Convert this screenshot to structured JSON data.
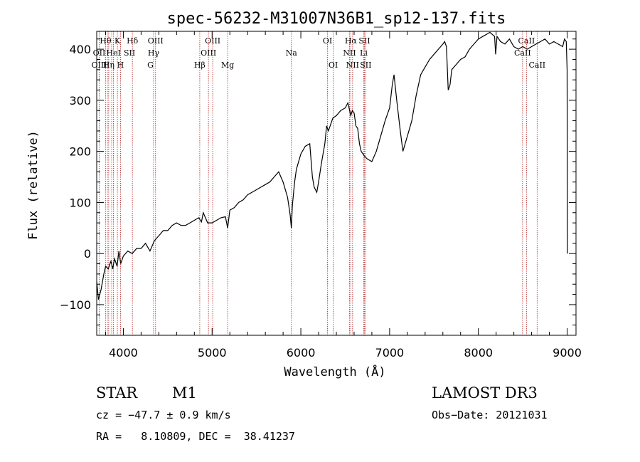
{
  "chart_data": {
    "type": "line",
    "title": "spec-56232-M31007N36B1_sp12-137.fits",
    "xlabel": "Wavelength (Å)",
    "ylabel": "Flux (relative)",
    "xlim": [
      3700,
      9100
    ],
    "ylim": [
      -160,
      435
    ],
    "xticks": [
      4000,
      5000,
      6000,
      7000,
      8000,
      9000
    ],
    "yticks": [
      -100,
      0,
      100,
      200,
      300,
      400
    ],
    "series": [
      {
        "name": "flux",
        "x": [
          3700,
          3720,
          3750,
          3780,
          3800,
          3830,
          3860,
          3880,
          3900,
          3930,
          3950,
          3970,
          4000,
          4050,
          4100,
          4150,
          4200,
          4250,
          4300,
          4350,
          4400,
          4450,
          4500,
          4550,
          4600,
          4650,
          4700,
          4750,
          4800,
          4850,
          4880,
          4900,
          4950,
          5000,
          5050,
          5100,
          5150,
          5175,
          5200,
          5250,
          5300,
          5350,
          5400,
          5450,
          5500,
          5550,
          5600,
          5650,
          5700,
          5750,
          5800,
          5850,
          5880,
          5893,
          5905,
          5930,
          5950,
          6000,
          6050,
          6100,
          6130,
          6150,
          6180,
          6200,
          6230,
          6250,
          6270,
          6290,
          6310,
          6330,
          6360,
          6400,
          6450,
          6500,
          6530,
          6550,
          6563,
          6580,
          6600,
          6620,
          6640,
          6660,
          6680,
          6700,
          6720,
          6750,
          6800,
          6850,
          6900,
          6950,
          7000,
          7030,
          7050,
          7080,
          7100,
          7120,
          7150,
          7200,
          7250,
          7300,
          7350,
          7400,
          7450,
          7500,
          7550,
          7600,
          7620,
          7640,
          7660,
          7680,
          7700,
          7750,
          7800,
          7850,
          7900,
          7950,
          8000,
          8050,
          8100,
          8130,
          8150,
          8183,
          8195,
          8210,
          8250,
          8300,
          8350,
          8400,
          8450,
          8500,
          8550,
          8600,
          8650,
          8700,
          8750,
          8800,
          8850,
          8900,
          8950,
          8970,
          8990,
          9000,
          9003
        ],
        "y": [
          -55,
          -90,
          -70,
          -40,
          -25,
          -30,
          -15,
          -30,
          -10,
          -25,
          5,
          -20,
          -5,
          5,
          0,
          10,
          10,
          20,
          5,
          25,
          35,
          45,
          45,
          55,
          60,
          55,
          55,
          60,
          65,
          70,
          62,
          80,
          60,
          60,
          65,
          70,
          72,
          50,
          85,
          90,
          100,
          105,
          115,
          120,
          125,
          130,
          135,
          140,
          150,
          160,
          140,
          110,
          75,
          50,
          95,
          140,
          165,
          195,
          210,
          215,
          150,
          130,
          120,
          140,
          175,
          195,
          215,
          250,
          240,
          250,
          265,
          270,
          280,
          285,
          295,
          280,
          270,
          280,
          275,
          250,
          245,
          215,
          200,
          195,
          190,
          185,
          180,
          200,
          230,
          260,
          285,
          330,
          350,
          300,
          270,
          240,
          200,
          230,
          260,
          310,
          350,
          365,
          380,
          390,
          400,
          410,
          415,
          405,
          320,
          330,
          360,
          370,
          380,
          385,
          400,
          410,
          420,
          425,
          430,
          433,
          430,
          425,
          390,
          425,
          415,
          410,
          420,
          405,
          400,
          405,
          400,
          405,
          410,
          415,
          420,
          410,
          415,
          410,
          405,
          420,
          415,
          360,
          0
        ]
      }
    ],
    "line_positions": [
      3728,
      3799,
      3820,
      3835,
      3869,
      3889,
      3933,
      3968,
      4102,
      4341,
      4363,
      4861,
      4959,
      5007,
      5175,
      5893,
      6300,
      6364,
      6548,
      6563,
      6583,
      6708,
      6716,
      6731,
      8498,
      8542,
      8662
    ]
  },
  "line_labels": [
    {
      "text": "Hθ",
      "x": 3799,
      "row": 1
    },
    {
      "text": "K",
      "x": 3933,
      "row": 1
    },
    {
      "text": "Hδ",
      "x": 4102,
      "row": 1
    },
    {
      "text": "OIII",
      "x": 4363,
      "row": 1
    },
    {
      "text": "OIII",
      "x": 5007,
      "row": 1
    },
    {
      "text": "OI",
      "x": 6300,
      "row": 1
    },
    {
      "text": "Hα",
      "x": 6563,
      "row": 1
    },
    {
      "text": "SII",
      "x": 6716,
      "row": 1
    },
    {
      "text": "CaII",
      "x": 8542,
      "row": 1
    },
    {
      "text": "OII",
      "x": 3728,
      "row": 2
    },
    {
      "text": "HeI",
      "x": 3889,
      "row": 2
    },
    {
      "text": "SII",
      "x": 4069,
      "row": 2
    },
    {
      "text": "Hγ",
      "x": 4341,
      "row": 2
    },
    {
      "text": "OIII",
      "x": 4959,
      "row": 2
    },
    {
      "text": "Na",
      "x": 5893,
      "row": 2
    },
    {
      "text": "NII",
      "x": 6548,
      "row": 2
    },
    {
      "text": "Li",
      "x": 6708,
      "row": 2
    },
    {
      "text": "CaII",
      "x": 8498,
      "row": 2
    },
    {
      "text": "OIII",
      "x": 3728,
      "row": 3
    },
    {
      "text": "Hη",
      "x": 3835,
      "row": 3
    },
    {
      "text": "H",
      "x": 3968,
      "row": 3
    },
    {
      "text": "G",
      "x": 4305,
      "row": 3
    },
    {
      "text": "Hβ",
      "x": 4861,
      "row": 3
    },
    {
      "text": "Mg",
      "x": 5175,
      "row": 3
    },
    {
      "text": "OI",
      "x": 6364,
      "row": 3
    },
    {
      "text": "NII",
      "x": 6583,
      "row": 3
    },
    {
      "text": "SII",
      "x": 6731,
      "row": 3
    },
    {
      "text": "CaII",
      "x": 8662,
      "row": 3
    }
  ],
  "info": {
    "object_class": "STAR",
    "subclass": "M1",
    "survey": "LAMOST DR3",
    "redshift_line": "cz = −47.7 ± 0.9 km/s",
    "obs_date_line": "Obs−Date: 20121031",
    "coords_line": "RA =   8.10809, DEC =  38.41237"
  }
}
